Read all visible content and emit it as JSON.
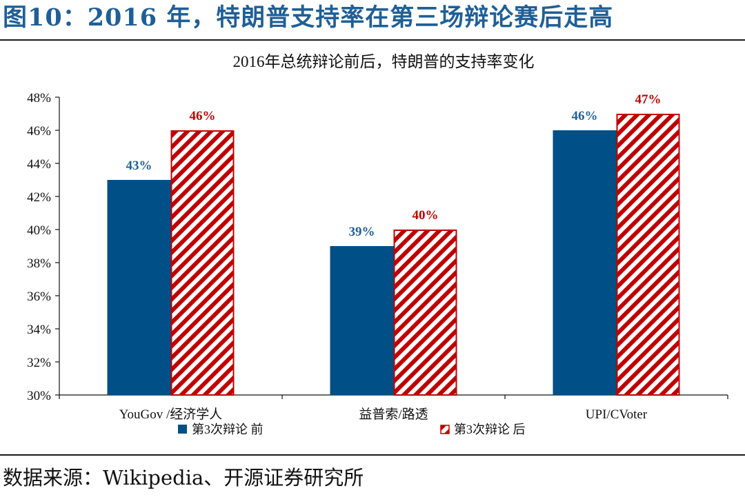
{
  "figure_title": "图10：2016 年，特朗普支持率在第三场辩论赛后走高",
  "source_note": "数据来源：Wikipedia、开源证券研究所",
  "colors": {
    "before": "#004f86",
    "after_hatch": "#c00000",
    "title": "#1f5f97",
    "label_before": "#1f5f97",
    "label_after": "#c00000"
  },
  "chart_data": {
    "type": "bar",
    "title": "2016年总统辩论前后，特朗普的支持率变化",
    "categories": [
      "YouGov /经济学人",
      "益普索/路透",
      "UPI/CVoter"
    ],
    "series": [
      {
        "name": "第3次辩论 前",
        "values": [
          43,
          39,
          46
        ],
        "labels": [
          "43%",
          "39%",
          "46%"
        ]
      },
      {
        "name": "第3次辩论 后",
        "values": [
          46,
          40,
          47
        ],
        "labels": [
          "46%",
          "40%",
          "47%"
        ]
      }
    ],
    "ylim": [
      30,
      48
    ],
    "yticks": [
      "30%",
      "32%",
      "34%",
      "36%",
      "38%",
      "40%",
      "42%",
      "44%",
      "46%",
      "48%"
    ],
    "ytick_values": [
      30,
      32,
      34,
      36,
      38,
      40,
      42,
      44,
      46,
      48
    ],
    "legend_position": "bottom",
    "grid": false
  }
}
